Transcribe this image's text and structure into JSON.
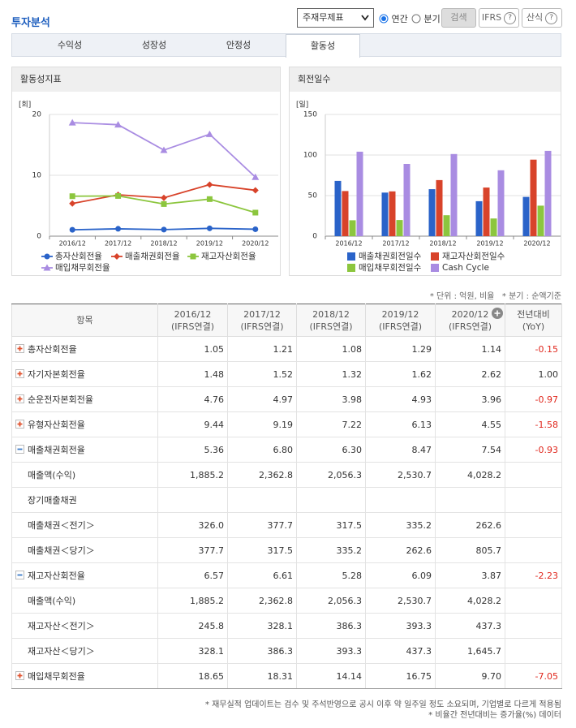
{
  "header": {
    "title": "투자분석",
    "select": "주재무제표",
    "radio_annual": "연간",
    "radio_quarter": "분기",
    "search": "검색",
    "ifrs": "IFRS",
    "formula": "산식",
    "help_icon": "?"
  },
  "tabs": [
    "수익성",
    "성장성",
    "안정성",
    "활동성"
  ],
  "active_tab": 3,
  "chart_data": [
    {
      "type": "line",
      "title": "활동성지표",
      "y_unit_label": "[회]",
      "categories": [
        "2016/12",
        "2017/12",
        "2018/12",
        "2019/12",
        "2020/12"
      ],
      "ylim": [
        0,
        20
      ],
      "yticks": [
        0,
        10,
        20
      ],
      "grid": true,
      "series": [
        {
          "name": "총자산회전율",
          "color": "#2a63c9",
          "marker": "circle",
          "values": [
            1.05,
            1.21,
            1.08,
            1.29,
            1.14
          ]
        },
        {
          "name": "매출채권회전율",
          "color": "#d8432a",
          "marker": "diamond",
          "values": [
            5.36,
            6.8,
            6.3,
            8.47,
            7.54
          ]
        },
        {
          "name": "재고자산회전율",
          "color": "#8cc63e",
          "marker": "square",
          "values": [
            6.57,
            6.61,
            5.28,
            6.09,
            3.87
          ]
        },
        {
          "name": "매입채무회전율",
          "color": "#a98ce2",
          "marker": "triangle",
          "values": [
            18.65,
            18.31,
            14.14,
            16.75,
            9.7
          ]
        }
      ]
    },
    {
      "type": "bar",
      "title": "회전일수",
      "y_unit_label": "[일]",
      "categories": [
        "2016/12",
        "2017/12",
        "2018/12",
        "2019/12",
        "2020/12"
      ],
      "ylim": [
        0,
        150
      ],
      "yticks": [
        0,
        50,
        100,
        150
      ],
      "grid": true,
      "series": [
        {
          "name": "매출채권회전일수",
          "color": "#2a63c9",
          "values": [
            68.1,
            53.7,
            57.9,
            43.1,
            48.4
          ]
        },
        {
          "name": "재고자산회전일수",
          "color": "#d8432a",
          "values": [
            55.6,
            55.2,
            69.1,
            59.9,
            94.3
          ]
        },
        {
          "name": "매입채무회전일수",
          "color": "#8cc63e",
          "values": [
            19.6,
            19.9,
            25.8,
            21.8,
            37.6
          ]
        },
        {
          "name": "Cash Cycle",
          "color": "#a98ce2",
          "values": [
            104.1,
            89.0,
            101.2,
            81.2,
            105.1
          ]
        }
      ]
    }
  ],
  "notes": [
    "* 단위 : 억원, 비율",
    "* 분기 : 순액기준"
  ],
  "table": {
    "item_header": "항목",
    "columns": [
      {
        "period": "2016/12",
        "basis": "(IFRS연결)"
      },
      {
        "period": "2017/12",
        "basis": "(IFRS연결)"
      },
      {
        "period": "2018/12",
        "basis": "(IFRS연결)"
      },
      {
        "period": "2019/12",
        "basis": "(IFRS연결)"
      },
      {
        "period": "2020/12",
        "basis": "(IFRS연결)"
      }
    ],
    "yoy_header": [
      "전년대비",
      "(YoY)"
    ],
    "rows": [
      {
        "label": "총자산회전율",
        "expanded": false,
        "cells": [
          "1.05",
          "1.21",
          "1.08",
          "1.29",
          "1.14",
          "-0.15"
        ]
      },
      {
        "label": "자기자본회전율",
        "expanded": false,
        "cells": [
          "1.48",
          "1.52",
          "1.32",
          "1.62",
          "2.62",
          "1.00"
        ]
      },
      {
        "label": "순운전자본회전율",
        "expanded": false,
        "cells": [
          "4.76",
          "4.97",
          "3.98",
          "4.93",
          "3.96",
          "-0.97"
        ]
      },
      {
        "label": "유형자산회전율",
        "expanded": false,
        "cells": [
          "9.44",
          "9.19",
          "7.22",
          "6.13",
          "4.55",
          "-1.58"
        ]
      },
      {
        "label": "매출채권회전율",
        "expanded": true,
        "cells": [
          "5.36",
          "6.80",
          "6.30",
          "8.47",
          "7.54",
          "-0.93"
        ]
      },
      {
        "label": "매출액(수익)",
        "cells": [
          "1,885.2",
          "2,362.8",
          "2,056.3",
          "2,530.7",
          "4,028.2",
          null
        ]
      },
      {
        "label": "장기매출채권",
        "cells": [
          null,
          null,
          null,
          null,
          null,
          null
        ]
      },
      {
        "label": "매출채권＜전기＞",
        "cells": [
          "326.0",
          "377.7",
          "317.5",
          "335.2",
          "262.6",
          null
        ]
      },
      {
        "label": "매출채권＜당기＞",
        "cells": [
          "377.7",
          "317.5",
          "335.2",
          "262.6",
          "805.7",
          null
        ]
      },
      {
        "label": "재고자산회전율",
        "expanded": true,
        "cells": [
          "6.57",
          "6.61",
          "5.28",
          "6.09",
          "3.87",
          "-2.23"
        ]
      },
      {
        "label": "매출액(수익)",
        "cells": [
          "1,885.2",
          "2,362.8",
          "2,056.3",
          "2,530.7",
          "4,028.2",
          null
        ]
      },
      {
        "label": "재고자산＜전기＞",
        "cells": [
          "245.8",
          "328.1",
          "386.3",
          "393.3",
          "437.3",
          null
        ]
      },
      {
        "label": "재고자산＜당기＞",
        "cells": [
          "328.1",
          "386.3",
          "393.3",
          "437.3",
          "1,645.7",
          null
        ]
      },
      {
        "label": "매입채무회전율",
        "expanded": false,
        "cells": [
          "18.65",
          "18.31",
          "14.14",
          "16.75",
          "9.70",
          "-7.05"
        ]
      }
    ]
  },
  "footnotes": [
    "* 재무실적 업데이트는 검수 및 주석반영으로 공시 이후 약 일주일 정도 소요되며, 기업별로 다르게 적용됨",
    "* 비율간 전년대비는 증가율(%) 데이터"
  ]
}
